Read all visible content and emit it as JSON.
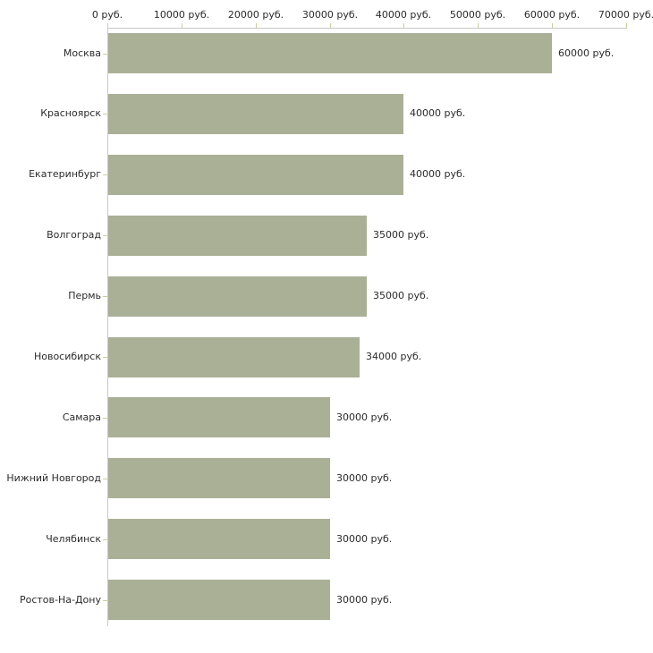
{
  "chart_data": {
    "type": "bar",
    "orientation": "horizontal",
    "title": "",
    "xlabel": "",
    "ylabel": "",
    "grid": false,
    "legend": false,
    "categories": [
      "Москва",
      "Красноярск",
      "Екатеринбург",
      "Волгоград",
      "Пермь",
      "Новосибирск",
      "Самара",
      "Нижний Новгород",
      "Челябинск",
      "Ростов-На-Дону"
    ],
    "values": [
      60000,
      40000,
      40000,
      35000,
      35000,
      34000,
      30000,
      30000,
      30000,
      30000
    ],
    "value_labels": [
      "60000 руб.",
      "40000 руб.",
      "40000 руб.",
      "35000 руб.",
      "35000 руб.",
      "34000 руб.",
      "30000 руб.",
      "30000 руб.",
      "30000 руб.",
      "30000 руб."
    ],
    "x_axis": {
      "position": "top",
      "min": 0,
      "max": 70000,
      "tick_interval": 10000,
      "tick_values": [
        0,
        10000,
        20000,
        30000,
        40000,
        50000,
        60000,
        70000
      ],
      "tick_labels": [
        "0 руб.",
        "10000 руб.",
        "20000 руб.",
        "30000 руб.",
        "40000 руб.",
        "50000 руб.",
        "60000 руб.",
        "70000 руб."
      ]
    },
    "colors": {
      "bar": "#aab096",
      "tick_mark": "#cccc99",
      "axis_line": "#c8c8c8",
      "text": "#2b2b2b",
      "background": "#ffffff"
    }
  }
}
